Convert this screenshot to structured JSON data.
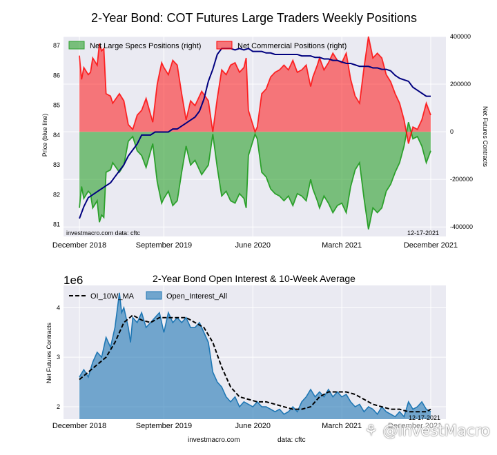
{
  "title": "2-Year Bond: COT Futures Large Traders Weekly Positions",
  "watermark": "⚘ @InvestMacro",
  "chart_data": [
    {
      "type": "area",
      "title": "",
      "ylabel_left": "Price (blue line)",
      "ylabel_right": "Net Futures Contracts",
      "x_ticks": [
        "December 2018",
        "September 2019",
        "June 2020",
        "March 2021",
        "December 2021"
      ],
      "left_ticks": [
        "81",
        "82",
        "83",
        "84",
        "85",
        "86",
        "87"
      ],
      "right_ticks": [
        "400000",
        "200000",
        "0",
        "-200000",
        "-400000"
      ],
      "ylim_left": [
        80.6,
        87.3
      ],
      "ylim_right": [
        -440000,
        400000
      ],
      "legend": "top-left",
      "footer_left": "investmacro.com   data: cftc",
      "footer_right": "12-17-2021",
      "series": [
        {
          "name": "Net Large Specs Positions (right)",
          "color": "#2ca02c",
          "x": [
            0,
            1,
            2,
            4,
            5,
            6,
            8,
            9,
            10,
            11,
            12,
            14,
            15,
            18,
            20,
            22,
            24,
            26,
            28,
            30,
            33,
            35,
            37,
            38,
            40,
            42,
            44,
            46,
            48,
            50,
            52,
            55,
            58,
            60,
            62,
            64,
            66,
            68,
            70,
            72,
            74,
            75,
            76,
            78,
            79,
            80,
            81,
            82,
            84,
            86,
            88,
            90,
            92,
            94,
            96,
            98,
            100,
            102,
            104,
            105,
            107,
            108,
            110,
            112,
            114,
            116,
            118,
            120,
            122,
            124,
            126,
            128,
            130,
            132,
            134,
            136,
            138,
            140,
            142,
            144,
            146,
            148,
            150,
            152,
            154,
            156,
            158
          ],
          "values": [
            -320000,
            -230000,
            -280000,
            -250000,
            -260000,
            -320000,
            -290000,
            -380000,
            -350000,
            -360000,
            -170000,
            -160000,
            -130000,
            -170000,
            -140000,
            -40000,
            -20000,
            -80000,
            -100000,
            -150000,
            -50000,
            -210000,
            -300000,
            -280000,
            -250000,
            -310000,
            -290000,
            -170000,
            -60000,
            -140000,
            -120000,
            -180000,
            -140000,
            -10000,
            -150000,
            -270000,
            -250000,
            -290000,
            -300000,
            -260000,
            -280000,
            -320000,
            -100000,
            -40000,
            -10000,
            -30000,
            -100000,
            -170000,
            -190000,
            -240000,
            -260000,
            -270000,
            -290000,
            -270000,
            -310000,
            -260000,
            -270000,
            -290000,
            -200000,
            -240000,
            -290000,
            -320000,
            -270000,
            -300000,
            -340000,
            -310000,
            -300000,
            -340000,
            -230000,
            -160000,
            -130000,
            -280000,
            -410000,
            -320000,
            -340000,
            -320000,
            -250000,
            -220000,
            -170000,
            -130000,
            -60000,
            40000,
            -30000,
            -20000,
            -60000,
            -130000,
            -80000
          ]
        },
        {
          "name": "Net Commercial Positions (right)",
          "color": "#ff0000",
          "x": [
            0,
            1,
            2,
            4,
            5,
            6,
            8,
            9,
            10,
            11,
            12,
            14,
            15,
            18,
            20,
            22,
            24,
            26,
            28,
            30,
            33,
            35,
            37,
            38,
            40,
            42,
            44,
            46,
            48,
            50,
            52,
            55,
            58,
            60,
            62,
            64,
            66,
            68,
            70,
            72,
            74,
            75,
            76,
            78,
            79,
            80,
            81,
            82,
            84,
            86,
            88,
            90,
            92,
            94,
            96,
            98,
            100,
            102,
            104,
            105,
            107,
            108,
            110,
            112,
            114,
            116,
            118,
            120,
            122,
            124,
            126,
            128,
            130,
            132,
            134,
            136,
            138,
            140,
            142,
            144,
            146,
            148,
            150,
            152,
            154,
            156,
            158
          ],
          "values": [
            320000,
            220000,
            270000,
            240000,
            250000,
            310000,
            280000,
            370000,
            340000,
            350000,
            160000,
            150000,
            120000,
            160000,
            130000,
            30000,
            10000,
            70000,
            90000,
            140000,
            40000,
            200000,
            290000,
            270000,
            240000,
            300000,
            280000,
            160000,
            50000,
            130000,
            110000,
            170000,
            130000,
            0,
            140000,
            260000,
            240000,
            280000,
            290000,
            250000,
            270000,
            310000,
            90000,
            30000,
            0,
            20000,
            90000,
            160000,
            180000,
            230000,
            250000,
            260000,
            280000,
            260000,
            300000,
            250000,
            260000,
            280000,
            190000,
            230000,
            280000,
            310000,
            260000,
            290000,
            330000,
            300000,
            290000,
            330000,
            220000,
            150000,
            120000,
            270000,
            400000,
            310000,
            330000,
            310000,
            240000,
            210000,
            160000,
            120000,
            50000,
            -50000,
            20000,
            10000,
            50000,
            120000,
            70000
          ]
        }
      ],
      "price_series": {
        "name": "Price",
        "color": "#00007f",
        "x": [
          0,
          2,
          4,
          6,
          8,
          10,
          12,
          14,
          16,
          18,
          20,
          22,
          24,
          26,
          28,
          30,
          32,
          34,
          36,
          38,
          40,
          42,
          44,
          46,
          48,
          50,
          52,
          54,
          56,
          58,
          60,
          62,
          63,
          64,
          66,
          68,
          70,
          72,
          74,
          76,
          78,
          80,
          82,
          84,
          86,
          88,
          90,
          92,
          94,
          96,
          98,
          100,
          102,
          104,
          106,
          108,
          110,
          112,
          114,
          116,
          118,
          120,
          122,
          124,
          126,
          128,
          130,
          132,
          134,
          136,
          138,
          140,
          142,
          144,
          146,
          148,
          150,
          152,
          154,
          156,
          158
        ],
        "values": [
          81.2,
          81.6,
          81.9,
          82.0,
          82.1,
          82.2,
          82.3,
          82.4,
          82.6,
          82.8,
          83.0,
          83.3,
          83.5,
          83.7,
          84.0,
          84.0,
          84.0,
          84.1,
          84.1,
          84.1,
          84.1,
          84.2,
          84.2,
          84.3,
          84.4,
          84.5,
          84.6,
          84.8,
          85.2,
          85.8,
          86.2,
          86.7,
          86.8,
          86.9,
          86.9,
          86.9,
          86.85,
          86.9,
          86.85,
          86.9,
          86.8,
          86.8,
          86.8,
          86.75,
          86.75,
          86.7,
          86.7,
          86.7,
          86.7,
          86.7,
          86.7,
          86.65,
          86.65,
          86.65,
          86.6,
          86.6,
          86.55,
          86.55,
          86.5,
          86.5,
          86.45,
          86.4,
          86.4,
          86.35,
          86.3,
          86.3,
          86.3,
          86.25,
          86.25,
          86.2,
          86.2,
          86.15,
          86.0,
          85.9,
          85.85,
          85.8,
          85.6,
          85.5,
          85.4,
          85.3,
          85.3
        ]
      }
    },
    {
      "type": "area",
      "title": "2-Year Bond Open Interest & 10-Week Average",
      "ylabel": "Net Futures Contracts",
      "offset_text": "1e6",
      "x_ticks": [
        "December 2018",
        "September 2019",
        "June 2020",
        "March 2021",
        "December 2021"
      ],
      "y_ticks": [
        "2",
        "3",
        "4"
      ],
      "ylim": [
        1.75,
        4.45
      ],
      "legend": "top-left",
      "footer_left": "investmacro.com",
      "footer_mid": "data: cftc",
      "footer_right": "12-17-2021",
      "x_overlay": "December 2021",
      "series": [
        {
          "name": "OI_10W_MA",
          "color": "#000000",
          "style": "dashed",
          "x": [
            0,
            4,
            8,
            12,
            16,
            20,
            24,
            28,
            32,
            36,
            40,
            44,
            48,
            52,
            56,
            60,
            64,
            68,
            72,
            76,
            80,
            84,
            88,
            92,
            96,
            100,
            104,
            108,
            112,
            116,
            120,
            124,
            128,
            132,
            136,
            140,
            144,
            148,
            152,
            156,
            158
          ],
          "values": [
            2.55,
            2.7,
            2.85,
            3.0,
            3.3,
            3.7,
            3.85,
            3.75,
            3.7,
            3.8,
            3.8,
            3.8,
            3.8,
            3.7,
            3.6,
            3.3,
            2.8,
            2.4,
            2.2,
            2.15,
            2.1,
            2.1,
            2.05,
            2.0,
            1.95,
            1.95,
            2.0,
            2.2,
            2.3,
            2.3,
            2.3,
            2.25,
            2.15,
            2.05,
            2.0,
            1.95,
            1.95,
            1.9,
            1.9,
            1.9,
            1.95
          ]
        },
        {
          "name": "Open_Interest_All",
          "color": "#1f77b4",
          "x": [
            0,
            2,
            4,
            6,
            8,
            10,
            12,
            14,
            16,
            18,
            19,
            20,
            22,
            23,
            24,
            26,
            28,
            30,
            32,
            34,
            36,
            38,
            40,
            42,
            44,
            46,
            48,
            50,
            52,
            54,
            56,
            58,
            60,
            62,
            64,
            66,
            68,
            70,
            72,
            74,
            76,
            78,
            80,
            82,
            84,
            86,
            88,
            90,
            92,
            94,
            96,
            98,
            100,
            102,
            104,
            106,
            108,
            110,
            112,
            114,
            116,
            118,
            120,
            122,
            124,
            126,
            128,
            130,
            132,
            134,
            136,
            138,
            140,
            142,
            144,
            146,
            148,
            150,
            152,
            154,
            156,
            158
          ],
          "values": [
            2.6,
            2.75,
            2.6,
            2.9,
            3.1,
            3.0,
            3.4,
            3.2,
            3.6,
            4.3,
            3.9,
            4.0,
            3.6,
            3.3,
            3.8,
            3.7,
            3.9,
            3.6,
            3.7,
            3.8,
            3.9,
            3.5,
            3.9,
            3.7,
            3.8,
            3.7,
            3.8,
            3.6,
            3.6,
            3.7,
            3.5,
            3.3,
            2.7,
            2.5,
            2.4,
            2.2,
            2.1,
            2.2,
            2.0,
            2.1,
            2.05,
            2.0,
            2.1,
            2.0,
            2.0,
            1.95,
            1.9,
            1.95,
            1.85,
            1.9,
            2.0,
            1.9,
            2.1,
            2.2,
            2.35,
            2.2,
            2.3,
            2.2,
            2.35,
            2.2,
            2.3,
            2.2,
            2.25,
            2.1,
            2.0,
            2.05,
            1.9,
            2.0,
            1.95,
            1.85,
            2.0,
            1.9,
            1.85,
            1.8,
            1.9,
            1.8,
            2.1,
            1.95,
            2.0,
            2.1,
            1.95,
            1.9
          ]
        }
      ]
    }
  ]
}
